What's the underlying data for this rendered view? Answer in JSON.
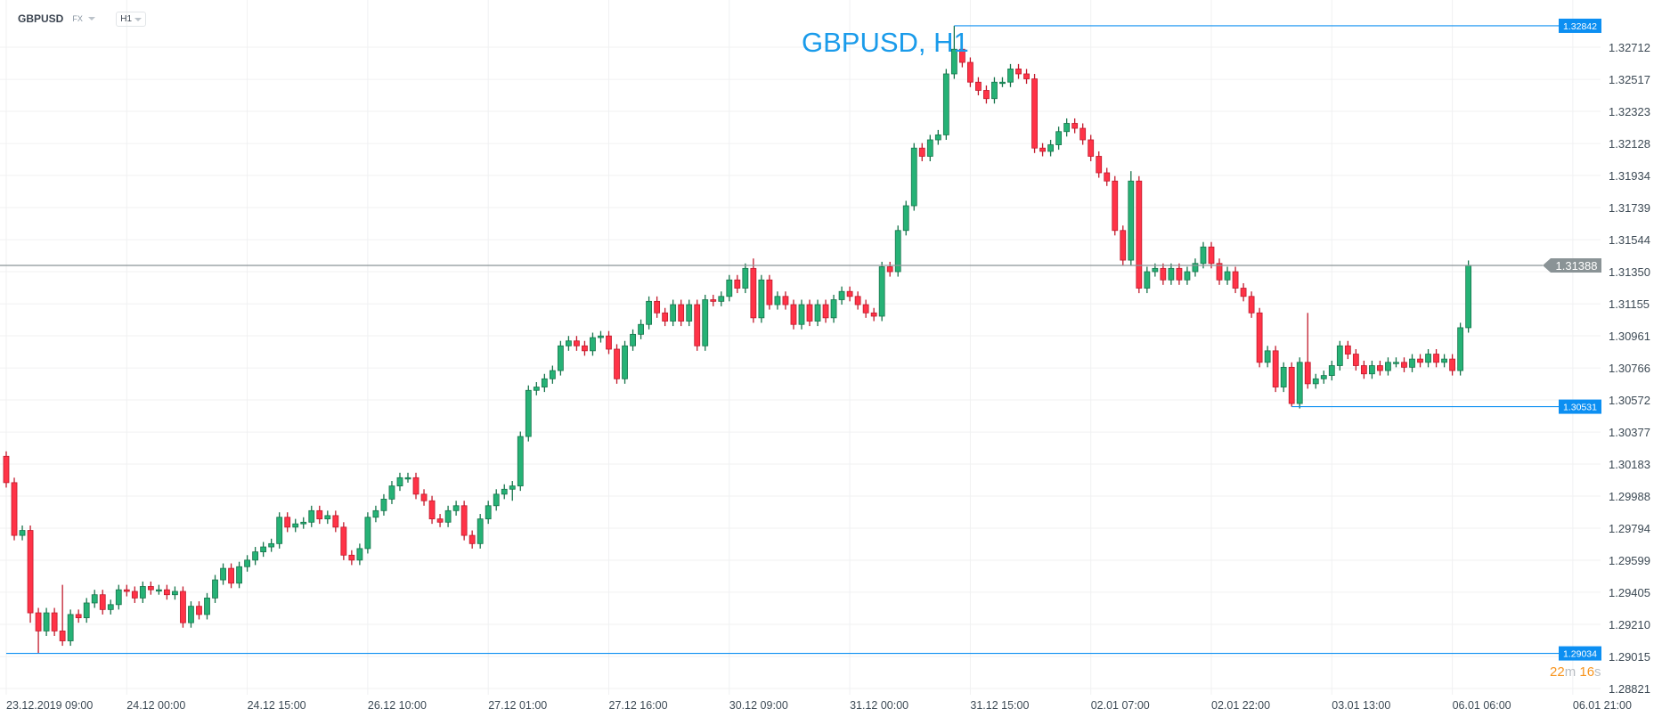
{
  "header": {
    "symbol": "GBPUSD",
    "market": "FX",
    "timeframe": "H1"
  },
  "title": "GBPUSD, H1",
  "countdown": {
    "minutes": "22",
    "m": "m",
    "seconds": "16",
    "s": "s"
  },
  "colors": {
    "up": "#26b276",
    "up_border": "#17744b",
    "down": "#ff3347",
    "down_border": "#c11a2c",
    "accent": "#0c8ff2",
    "current": "#8a9396",
    "grid": "#f0f1f2"
  },
  "chart_data": {
    "type": "candlestick",
    "ylim": [
      1.28821,
      1.32906
    ],
    "y_ticks": [
      "1.32712",
      "1.32517",
      "1.32323",
      "1.32128",
      "1.31934",
      "1.31739",
      "1.31544",
      "1.31350",
      "1.31155",
      "1.30961",
      "1.30766",
      "1.30572",
      "1.30377",
      "1.30183",
      "1.29988",
      "1.29794",
      "1.29599",
      "1.29405",
      "1.29210",
      "1.29015",
      "1.28821"
    ],
    "x_labels": [
      "23.12.2019  09:00",
      "24.12  00:00",
      "24.12  15:00",
      "26.12  10:00",
      "27.12  01:00",
      "27.12  16:00",
      "30.12  09:00",
      "31.12  00:00",
      "31.12  15:00",
      "02.01  07:00",
      "02.01  22:00",
      "03.01  13:00",
      "06.01  06:00",
      "06.01  21:00"
    ],
    "candles_per_label": 15,
    "first_open": 1.3023,
    "close": [
      1.3007,
      1.2975,
      1.2978,
      1.2928,
      1.2917,
      1.2928,
      1.2917,
      1.2911,
      1.2927,
      1.2925,
      1.2934,
      1.2939,
      1.293,
      1.2933,
      1.2942,
      1.2941,
      1.2937,
      1.2944,
      1.2942,
      1.2942,
      1.2939,
      1.2941,
      1.2922,
      1.2932,
      1.2927,
      1.2937,
      1.2948,
      1.2955,
      1.2946,
      1.2956,
      1.296,
      1.2965,
      1.2968,
      1.297,
      1.2986,
      1.298,
      1.2982,
      1.2983,
      1.299,
      1.2985,
      1.2987,
      1.298,
      1.2963,
      1.296,
      1.2967,
      1.2986,
      1.299,
      1.2997,
      1.3005,
      1.301,
      1.301,
      1.3,
      1.2996,
      1.2985,
      1.2983,
      1.299,
      1.2993,
      1.2975,
      1.297,
      1.2985,
      1.2993,
      1.3,
      1.3003,
      1.3005,
      1.3035,
      1.3063,
      1.3065,
      1.307,
      1.3075,
      1.309,
      1.3093,
      1.309,
      1.3087,
      1.3095,
      1.3096,
      1.3088,
      1.307,
      1.309,
      1.3097,
      1.3103,
      1.3117,
      1.311,
      1.3105,
      1.3115,
      1.3105,
      1.3115,
      1.309,
      1.3118,
      1.3117,
      1.312,
      1.313,
      1.3125,
      1.3137,
      1.3107,
      1.313,
      1.3115,
      1.312,
      1.3115,
      1.3103,
      1.3115,
      1.3105,
      1.3115,
      1.3107,
      1.3118,
      1.3123,
      1.312,
      1.3115,
      1.311,
      1.3108,
      1.3138,
      1.3135,
      1.316,
      1.3175,
      1.321,
      1.3205,
      1.3215,
      1.3218,
      1.3255,
      1.327,
      1.3262,
      1.325,
      1.3245,
      1.324,
      1.325,
      1.325,
      1.3258,
      1.3255,
      1.3252,
      1.321,
      1.3208,
      1.3212,
      1.322,
      1.3225,
      1.3222,
      1.3215,
      1.3205,
      1.3195,
      1.319,
      1.316,
      1.3142,
      1.319,
      1.3125,
      1.3135,
      1.3137,
      1.313,
      1.3137,
      1.313,
      1.3135,
      1.314,
      1.315,
      1.314,
      1.313,
      1.3135,
      1.3125,
      1.312,
      1.311,
      1.308,
      1.3087,
      1.3065,
      1.3077,
      1.3055,
      1.308,
      1.3067,
      1.307,
      1.3072,
      1.3078,
      1.309,
      1.3085,
      1.3078,
      1.3073,
      1.3078,
      1.3075,
      1.308,
      1.308,
      1.3077,
      1.3082,
      1.308,
      1.3085,
      1.308,
      1.3082,
      1.3075,
      1.3101,
      1.31388
    ],
    "wick_default": 0.0003,
    "wick_overrides": {
      "3": {
        "l": 1.2922
      },
      "4": {
        "l": 1.29034
      },
      "7": {
        "h": 1.2945
      },
      "63": {
        "l": 1.2996
      },
      "93": {
        "h": 1.3143
      },
      "118": {
        "h": 1.32842
      },
      "140": {
        "h": 1.3196
      },
      "160": {
        "l": 1.30531
      },
      "162": {
        "h": 1.311
      }
    },
    "levels": [
      {
        "name": "high",
        "value": "1.32842",
        "from_candle": 118
      },
      {
        "name": "low",
        "value": "1.30531",
        "from_candle": 160
      },
      {
        "name": "period-low",
        "value": "1.29034",
        "from_candle": 0
      }
    ],
    "current_price": "1.31388"
  }
}
